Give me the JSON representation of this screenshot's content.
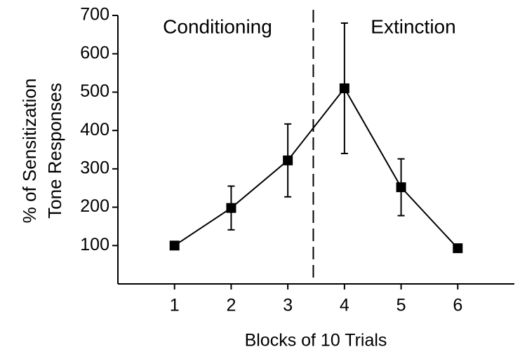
{
  "chart_data": {
    "type": "line",
    "ylabel": [
      "% of Sensitization",
      "Tone Responses"
    ],
    "xlabel": "Blocks of 10 Trials",
    "annotations": [
      "Conditioning",
      "Extinction"
    ],
    "divider_x": 3.45,
    "x": [
      1,
      2,
      3,
      4,
      5,
      6
    ],
    "series": [
      {
        "color": "#000000",
        "values": [
          100,
          198,
          322,
          510,
          252,
          93
        ],
        "errors": [
          null,
          57,
          95,
          170,
          74,
          null
        ]
      }
    ],
    "xlim": [
      0,
      7
    ],
    "xticks": [
      1,
      2,
      3,
      4,
      5,
      6
    ],
    "ylim": [
      0,
      700
    ],
    "yticks": [
      100,
      200,
      300,
      400,
      500,
      600,
      700
    ],
    "grid": false
  }
}
